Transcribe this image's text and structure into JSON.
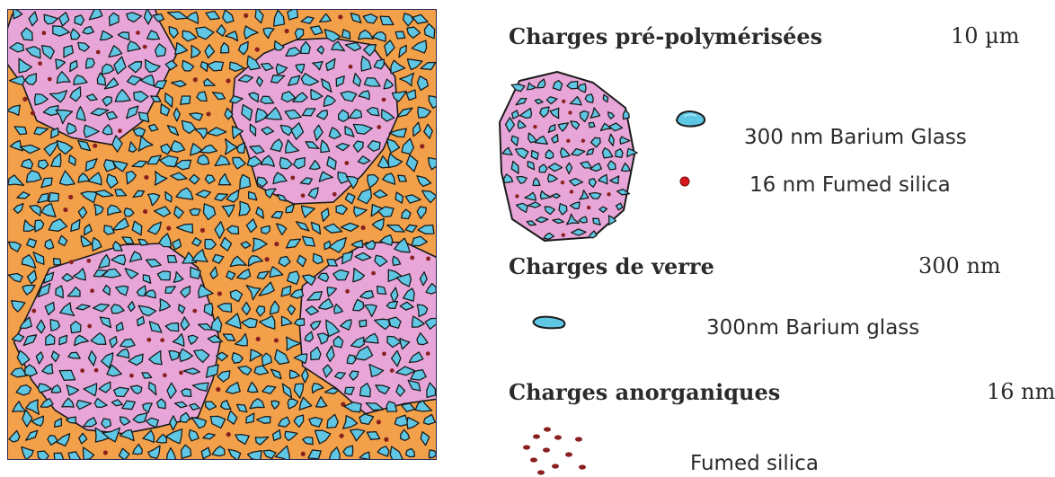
{
  "colors": {
    "resin": "#f2a04a",
    "prepolymer": "#e8a6d8",
    "barium_glass": "#5fc6e4",
    "fumed_silica_dot": "#8a1f1f",
    "outline": "#1a1a1a",
    "frame": "#2a2a58"
  },
  "icons": {
    "composite_view": "composite-microstructure-icon",
    "prepolymer_particle": "prepolymerized-filler-icon",
    "barium_glass": "barium-glass-particle-icon",
    "fumed_silica": "fumed-silica-dot-icon",
    "fumed_silica_cluster": "fumed-silica-cluster-icon"
  },
  "legend": {
    "prepolymer": {
      "heading": "Charges pré-polymérisées",
      "size": "10 µm",
      "items": [
        {
          "label": "300 nm Barium Glass"
        },
        {
          "label": "16 nm Fumed silica"
        }
      ]
    },
    "glass": {
      "heading": "Charges de verre",
      "size": "300 nm",
      "item_label": "300nm Barium glass"
    },
    "inorganic": {
      "heading": "Charges anorganiques",
      "size": "16 nm",
      "item_label": "Fumed silica"
    }
  }
}
